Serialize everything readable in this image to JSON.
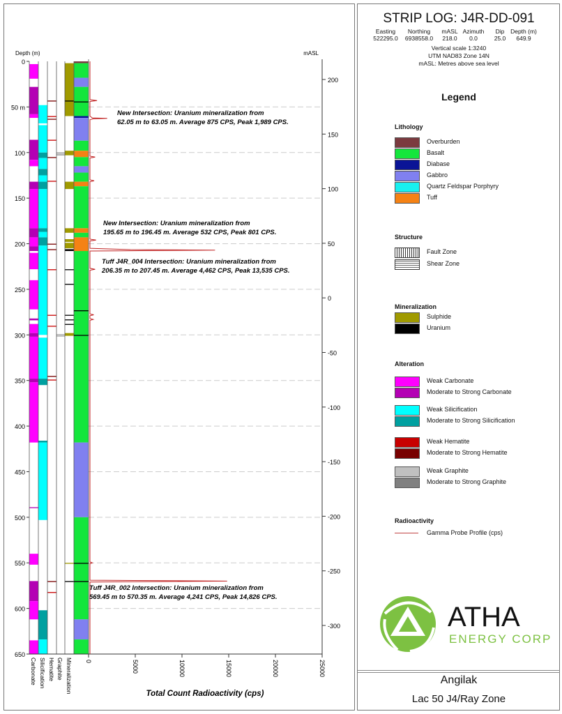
{
  "header": {
    "title": "STRIP LOG: J4R-DD-091",
    "columns": [
      "Easting",
      "Northing",
      "mASL",
      "Azimuth",
      "Dip",
      "Depth (m)"
    ],
    "values": [
      "522295.0",
      "6938558.0",
      "218.0",
      "0.0",
      "25.0",
      "649.9"
    ],
    "scale": "Vertical scale 1:3240",
    "datum": "UTM NAD83 Zone 14N",
    "masl_note": "mASL: Metres above sea level"
  },
  "legend": {
    "title": "Legend",
    "sections": [
      {
        "title": "Lithology",
        "items": [
          {
            "label": "Overburden",
            "color": "#7b3a3f"
          },
          {
            "label": "Basalt",
            "color": "#14e63c"
          },
          {
            "label": "Diabase",
            "color": "#0a1496"
          },
          {
            "label": "Gabbro",
            "color": "#8080f0"
          },
          {
            "label": "Quartz Feldspar Porphyry",
            "color": "#18f0f0"
          },
          {
            "label": "Tuff",
            "color": "#f58214"
          }
        ]
      },
      {
        "title": "Structure",
        "items": [
          {
            "label": "Fault Zone",
            "pattern": "vertical-lines"
          },
          {
            "label": "Shear Zone",
            "pattern": "dashes"
          }
        ]
      },
      {
        "title": "Mineralization",
        "items": [
          {
            "label": "Sulphide",
            "color": "#a09a00"
          },
          {
            "label": "Uranium",
            "color": "#000000"
          }
        ]
      },
      {
        "title": "Alteration",
        "items": [
          {
            "label": "Weak Carbonate",
            "color": "#ff00ff"
          },
          {
            "label": "Moderate to Strong Carbonate",
            "color": "#b400b4"
          },
          {
            "label": "Weak Silicification",
            "color": "#00ffff"
          },
          {
            "label": "Moderate to Strong Silicification",
            "color": "#00a0a0"
          },
          {
            "label": "Weak Hematite",
            "color": "#c80000"
          },
          {
            "label": "Moderate to Strong Hematite",
            "color": "#780000"
          },
          {
            "label": "Weak Graphite",
            "color": "#c0c0c0"
          },
          {
            "label": "Moderate to Strong Graphite",
            "color": "#808080"
          }
        ]
      },
      {
        "title": "Radioactivity",
        "items": [
          {
            "label": "Gamma Probe Profile (cps)",
            "line": "#c04040"
          }
        ]
      }
    ]
  },
  "logo": {
    "name": "ATHA",
    "sub": "ENERGY CORP.",
    "color": "#7dc142"
  },
  "footer": {
    "project": "Angilak",
    "zone": "Lac 50 J4/Ray Zone"
  },
  "chart_data": {
    "type": "strip-log",
    "depth_axis": {
      "label": "Depth (m)",
      "range": [
        0,
        650
      ],
      "ticks": [
        0,
        50,
        100,
        150,
        200,
        250,
        300,
        350,
        400,
        450,
        500,
        550,
        600,
        650
      ],
      "first_label_suffix": " m"
    },
    "masl_axis": {
      "label": "mASL",
      "ticks": [
        200,
        150,
        100,
        50,
        0,
        -50,
        -100,
        -150,
        -200,
        -250,
        -300
      ]
    },
    "x_axis": {
      "label": "Total Count Radioactivity (cps)",
      "range": [
        0,
        25000
      ],
      "ticks": [
        0,
        5000,
        10000,
        15000,
        20000,
        25000
      ]
    },
    "grid": "dashed at depth ticks",
    "column_labels": [
      "Carbonate",
      "Silicification",
      "Hematite",
      "Graphite",
      "Mineralization"
    ],
    "carbonate": [
      [
        3,
        19,
        "#ff00ff"
      ],
      [
        28,
        58,
        "#b400b4"
      ],
      [
        58,
        62,
        "#ff00ff"
      ],
      [
        86,
        108,
        "#b400b4"
      ],
      [
        108,
        115,
        "#ff00ff"
      ],
      [
        132,
        140,
        "#b400b4"
      ],
      [
        140,
        183,
        "#ff00ff"
      ],
      [
        183,
        193,
        "#b400b4"
      ],
      [
        193,
        203,
        "#ff00ff"
      ],
      [
        203,
        208,
        "#b400b4"
      ],
      [
        210,
        228,
        "#ff00ff"
      ],
      [
        240,
        272,
        "#ff00ff"
      ],
      [
        282,
        284,
        "#b400b4"
      ],
      [
        288,
        298,
        "#ff00ff"
      ],
      [
        298,
        302,
        "#b400b4"
      ],
      [
        302,
        348,
        "#ff00ff"
      ],
      [
        348,
        352,
        "#b400b4"
      ],
      [
        352,
        418,
        "#ff00ff"
      ],
      [
        489,
        490,
        "#b400b4"
      ],
      [
        540,
        552,
        "#ff00ff"
      ],
      [
        570,
        592,
        "#b400b4"
      ],
      [
        592,
        612,
        "#ff00ff"
      ],
      [
        635,
        650,
        "#ff00ff"
      ]
    ],
    "silicification": [
      [
        48,
        68,
        "#00ffff"
      ],
      [
        70,
        100,
        "#00ffff"
      ],
      [
        100,
        106,
        "#00a0a0"
      ],
      [
        106,
        118,
        "#00ffff"
      ],
      [
        118,
        125,
        "#00a0a0"
      ],
      [
        125,
        132,
        "#00ffff"
      ],
      [
        132,
        140,
        "#00a0a0"
      ],
      [
        140,
        183,
        "#00ffff"
      ],
      [
        183,
        187,
        "#00a0a0"
      ],
      [
        187,
        193,
        "#00ffff"
      ],
      [
        193,
        202,
        "#00a0a0"
      ],
      [
        202,
        300,
        "#00ffff"
      ],
      [
        303,
        348,
        "#00ffff"
      ],
      [
        348,
        355,
        "#00a0a0"
      ],
      [
        416,
        418,
        "#00a0a0"
      ],
      [
        418,
        503,
        "#00ffff"
      ],
      [
        602,
        634,
        "#00a0a0"
      ],
      [
        634,
        650,
        "#00ffff"
      ]
    ],
    "hematite": [
      [
        43,
        44,
        "#780000"
      ],
      [
        60,
        61,
        "#c80000"
      ],
      [
        63,
        64,
        "#780000"
      ],
      [
        86,
        87,
        "#c80000"
      ],
      [
        105,
        106,
        "#780000"
      ],
      [
        131,
        132,
        "#c80000"
      ],
      [
        200,
        201,
        "#780000"
      ],
      [
        206,
        207,
        "#780000"
      ],
      [
        228,
        229,
        "#c80000"
      ],
      [
        278,
        279,
        "#c80000"
      ],
      [
        290,
        291,
        "#c80000"
      ],
      [
        345,
        346,
        "#780000"
      ],
      [
        349,
        350,
        "#c80000"
      ],
      [
        570,
        571,
        "#780000"
      ],
      [
        582,
        583,
        "#c80000"
      ]
    ],
    "graphite": [
      [
        100,
        101,
        "#808080"
      ],
      [
        102,
        103,
        "#808080"
      ],
      [
        299,
        302,
        "#c0c0c0"
      ]
    ],
    "mineralization": [
      [
        2,
        60,
        "#a09a00"
      ],
      [
        43,
        44,
        "#000000"
      ],
      [
        98,
        103,
        "#a09a00"
      ],
      [
        132,
        140,
        "#a09a00"
      ],
      [
        183,
        188,
        "#a09a00"
      ],
      [
        195,
        198,
        "#a09a00"
      ],
      [
        199,
        205,
        "#a09a00"
      ],
      [
        206,
        208,
        "#000000"
      ],
      [
        228,
        229,
        "#000000"
      ],
      [
        244,
        245,
        "#000000"
      ],
      [
        278,
        279,
        "#000000"
      ],
      [
        283,
        284,
        "#000000"
      ],
      [
        288,
        289,
        "#000000"
      ],
      [
        298,
        301,
        "#a09a00"
      ],
      [
        550,
        551,
        "#a09a00"
      ],
      [
        570,
        571,
        "#000000"
      ]
    ],
    "lithology": [
      [
        0,
        2,
        "#7b3a3f"
      ],
      [
        2,
        18,
        "#14e63c"
      ],
      [
        18,
        28,
        "#8080f0"
      ],
      [
        28,
        60,
        "#14e63c"
      ],
      [
        60,
        62,
        "#0a1496"
      ],
      [
        62,
        87,
        "#8080f0"
      ],
      [
        87,
        98,
        "#14e63c"
      ],
      [
        98,
        105,
        "#f58214"
      ],
      [
        105,
        115,
        "#14e63c"
      ],
      [
        115,
        122,
        "#8080f0"
      ],
      [
        122,
        132,
        "#14e63c"
      ],
      [
        132,
        137,
        "#f58214"
      ],
      [
        137,
        183,
        "#14e63c"
      ],
      [
        183,
        188,
        "#f58214"
      ],
      [
        188,
        193,
        "#14e63c"
      ],
      [
        193,
        208,
        "#f58214"
      ],
      [
        208,
        418,
        "#14e63c"
      ],
      [
        418,
        500,
        "#8080f0"
      ],
      [
        500,
        612,
        "#14e63c"
      ],
      [
        612,
        634,
        "#8080f0"
      ],
      [
        634,
        650,
        "#14e63c"
      ]
    ],
    "uranium_marks": [
      44,
      273,
      300,
      550,
      570
    ],
    "gamma": {
      "name": "Gamma Probe Profile (cps)",
      "depth": [
        0,
        42,
        43,
        44,
        60,
        62,
        62.5,
        63,
        64,
        104,
        105,
        106,
        130,
        131,
        132,
        195,
        196,
        197,
        205,
        206.5,
        207,
        208,
        227,
        228,
        229,
        277,
        278,
        279,
        282,
        283,
        284,
        549,
        550,
        551,
        569,
        570,
        571,
        650
      ],
      "cps": [
        150,
        150,
        900,
        150,
        150,
        400,
        1989,
        500,
        150,
        150,
        700,
        150,
        150,
        600,
        150,
        150,
        801,
        150,
        150,
        4462,
        13535,
        150,
        150,
        700,
        150,
        150,
        550,
        150,
        150,
        500,
        150,
        150,
        400,
        150,
        150,
        14826,
        150,
        150
      ]
    },
    "annotations": [
      {
        "depth": 62.5,
        "lines": [
          "New Intersection: Uranium mineralization from",
          "62.05 m to 63.05 m. Average 875 CPS, Peak 1,989 CPS."
        ]
      },
      {
        "depth": 196,
        "lines": [
          "New Intersection: Uranium mineralization from",
          "195.65 m to 196.45 m. Average 532 CPS, Peak 801 CPS."
        ]
      },
      {
        "depth": 207,
        "lines": [
          "Tuff J4R_004 Intersection: Uranium mineralization from",
          "206.35 m to 207.45 m. Average 4,462 CPS, Peak 13,535 CPS."
        ]
      },
      {
        "depth": 570,
        "lines": [
          "Tuff J4R_002 Intersection: Uranium mineralization from",
          "569.45 m to 570.35 m. Average 4,241 CPS, Peak 14,826 CPS."
        ]
      }
    ]
  }
}
